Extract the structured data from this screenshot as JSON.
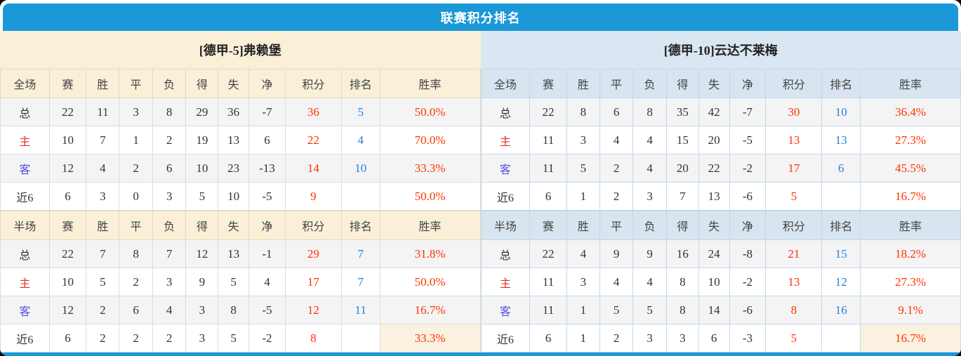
{
  "title": "联赛积分排名",
  "colors": {
    "accent_blue": "#1b98d7",
    "left_theme_cream": "#faf0d8",
    "right_theme_blue": "#d8e4f0",
    "score_red": "#ff3300",
    "rank_blue": "#2080d8",
    "home_label_red": "#e03131",
    "away_label_blue": "#5750dd"
  },
  "teams": [
    {
      "name": "[德甲-5]弗赖堡",
      "full": {
        "headers": [
          "全场",
          "赛",
          "胜",
          "平",
          "负",
          "得",
          "失",
          "净",
          "积分",
          "排名",
          "胜率"
        ],
        "rows": [
          {
            "label": "总",
            "type": "total",
            "cells": [
              "22",
              "11",
              "3",
              "8",
              "29",
              "36",
              "-7",
              "36",
              "5",
              "50.0%"
            ]
          },
          {
            "label": "主",
            "type": "home",
            "cells": [
              "10",
              "7",
              "1",
              "2",
              "19",
              "13",
              "6",
              "22",
              "4",
              "70.0%"
            ]
          },
          {
            "label": "客",
            "type": "away",
            "cells": [
              "12",
              "4",
              "2",
              "6",
              "10",
              "23",
              "-13",
              "14",
              "10",
              "33.3%"
            ]
          },
          {
            "label": "近6",
            "type": "recent",
            "cells": [
              "6",
              "3",
              "0",
              "3",
              "5",
              "10",
              "-5",
              "9",
              "",
              "50.0%"
            ]
          }
        ]
      },
      "half": {
        "headers": [
          "半场",
          "赛",
          "胜",
          "平",
          "负",
          "得",
          "失",
          "净",
          "积分",
          "排名",
          "胜率"
        ],
        "rows": [
          {
            "label": "总",
            "type": "total",
            "cells": [
              "22",
              "7",
              "8",
              "7",
              "12",
              "13",
              "-1",
              "29",
              "7",
              "31.8%"
            ]
          },
          {
            "label": "主",
            "type": "home",
            "cells": [
              "10",
              "5",
              "2",
              "3",
              "9",
              "5",
              "4",
              "17",
              "7",
              "50.0%"
            ]
          },
          {
            "label": "客",
            "type": "away",
            "cells": [
              "12",
              "2",
              "6",
              "4",
              "3",
              "8",
              "-5",
              "12",
              "11",
              "16.7%"
            ]
          },
          {
            "label": "近6",
            "type": "recent",
            "cells": [
              "6",
              "2",
              "2",
              "2",
              "3",
              "5",
              "-2",
              "8",
              "",
              "33.3%"
            ]
          }
        ]
      }
    },
    {
      "name": "[德甲-10]云达不莱梅",
      "full": {
        "headers": [
          "全场",
          "赛",
          "胜",
          "平",
          "负",
          "得",
          "失",
          "净",
          "积分",
          "排名",
          "胜率"
        ],
        "rows": [
          {
            "label": "总",
            "type": "total",
            "cells": [
              "22",
              "8",
              "6",
              "8",
              "35",
              "42",
              "-7",
              "30",
              "10",
              "36.4%"
            ]
          },
          {
            "label": "主",
            "type": "home",
            "cells": [
              "11",
              "3",
              "4",
              "4",
              "15",
              "20",
              "-5",
              "13",
              "13",
              "27.3%"
            ]
          },
          {
            "label": "客",
            "type": "away",
            "cells": [
              "11",
              "5",
              "2",
              "4",
              "20",
              "22",
              "-2",
              "17",
              "6",
              "45.5%"
            ]
          },
          {
            "label": "近6",
            "type": "recent",
            "cells": [
              "6",
              "1",
              "2",
              "3",
              "7",
              "13",
              "-6",
              "5",
              "",
              "16.7%"
            ]
          }
        ]
      },
      "half": {
        "headers": [
          "半场",
          "赛",
          "胜",
          "平",
          "负",
          "得",
          "失",
          "净",
          "积分",
          "排名",
          "胜率"
        ],
        "rows": [
          {
            "label": "总",
            "type": "total",
            "cells": [
              "22",
              "4",
              "9",
              "9",
              "16",
              "24",
              "-8",
              "21",
              "15",
              "18.2%"
            ]
          },
          {
            "label": "主",
            "type": "home",
            "cells": [
              "11",
              "3",
              "4",
              "4",
              "8",
              "10",
              "-2",
              "13",
              "12",
              "27.3%"
            ]
          },
          {
            "label": "客",
            "type": "away",
            "cells": [
              "11",
              "1",
              "5",
              "5",
              "8",
              "14",
              "-6",
              "8",
              "16",
              "9.1%"
            ]
          },
          {
            "label": "近6",
            "type": "recent",
            "cells": [
              "6",
              "1",
              "2",
              "3",
              "3",
              "6",
              "-3",
              "5",
              "",
              "16.7%"
            ]
          }
        ]
      }
    }
  ]
}
